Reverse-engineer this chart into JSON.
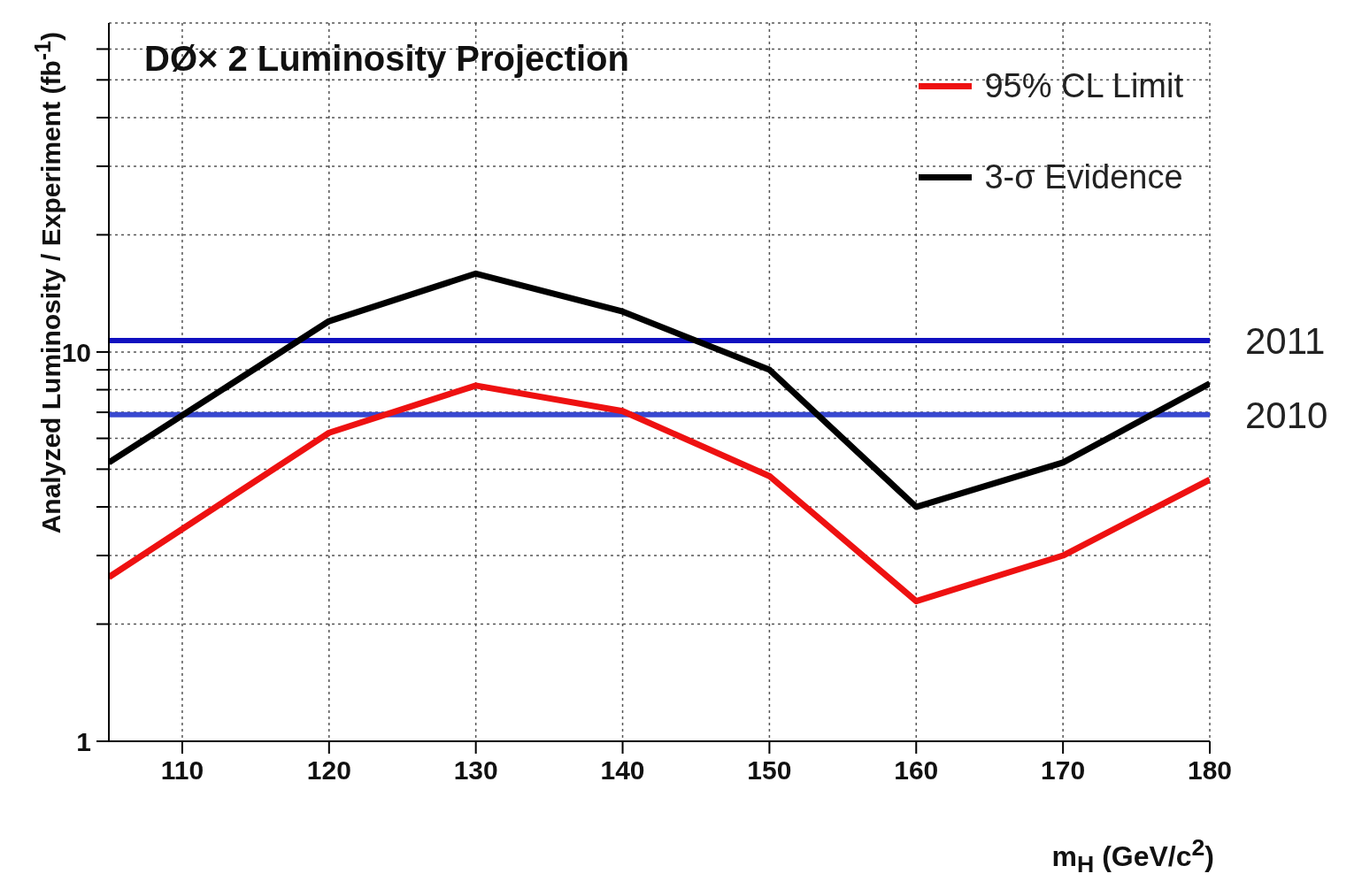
{
  "chart_data": {
    "type": "line",
    "title": "DØ× 2 Luminosity Projection",
    "xlabel": "m$_{H}$ (GeV/c$^{2}$)",
    "ylabel": "Analyzed Luminosity / Experiment (fb$^{-1}$)",
    "x": [
      105,
      120,
      130,
      140,
      150,
      160,
      170,
      180
    ],
    "series": [
      {
        "name": "95% CL Limit",
        "color": "#ee1111",
        "values": [
          2.64,
          6.2,
          8.2,
          7.05,
          4.8,
          2.29,
          3.0,
          4.7
        ]
      },
      {
        "name": "3-σ Evidence",
        "color": "#000000",
        "values": [
          5.2,
          12.0,
          15.9,
          12.7,
          9.0,
          4.0,
          5.2,
          8.3
        ]
      }
    ],
    "ref_lines": [
      {
        "axis": "y",
        "value": 10.7,
        "color": "#1010c0"
      },
      {
        "axis": "y",
        "value": 6.9,
        "color": "#3848d0"
      }
    ],
    "annotations": [
      {
        "text": "2011",
        "x": 180,
        "y": 10.7
      },
      {
        "text": "2010",
        "x": 180,
        "y": 6.9
      }
    ],
    "xlim": [
      105,
      180
    ],
    "xticks": [
      110,
      120,
      130,
      140,
      150,
      160,
      170,
      180
    ],
    "ylim": [
      1,
      70
    ],
    "yticks": [
      1,
      {
        "value": 2,
        "label": null
      },
      {
        "value": 3,
        "label": null
      },
      {
        "value": 4,
        "label": null
      },
      {
        "value": 5,
        "label": null
      },
      {
        "value": 6,
        "label": null
      },
      {
        "value": 7,
        "label": null
      },
      {
        "value": 8,
        "label": null
      },
      {
        "value": 9,
        "label": null
      },
      10,
      {
        "value": 20,
        "label": null
      },
      {
        "value": 30,
        "label": null
      },
      {
        "value": 40,
        "label": null
      },
      {
        "value": 50,
        "label": null
      },
      {
        "value": 60,
        "label": null
      }
    ],
    "log": "y",
    "grid": true,
    "legend": "top right",
    "marker": "none"
  }
}
